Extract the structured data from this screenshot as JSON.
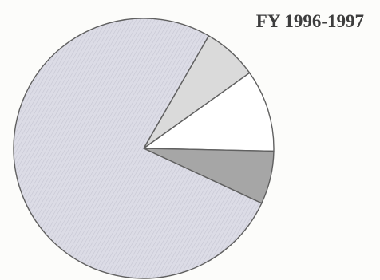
{
  "chart_data": {
    "type": "pie",
    "title": "FY 1996-1997",
    "start_angle_deg": -60,
    "direction": "clockwise",
    "slices": [
      {
        "value": 6.8,
        "fill": "#dadada"
      },
      {
        "value": 10.2,
        "fill": "#ffffff"
      },
      {
        "value": 6.6,
        "fill": "#a6a6a6"
      },
      {
        "value": 76.4,
        "fill": "#dcdce6"
      }
    ],
    "stroke_color": "#606060",
    "large_slice_texture": "#c6c6d2"
  }
}
